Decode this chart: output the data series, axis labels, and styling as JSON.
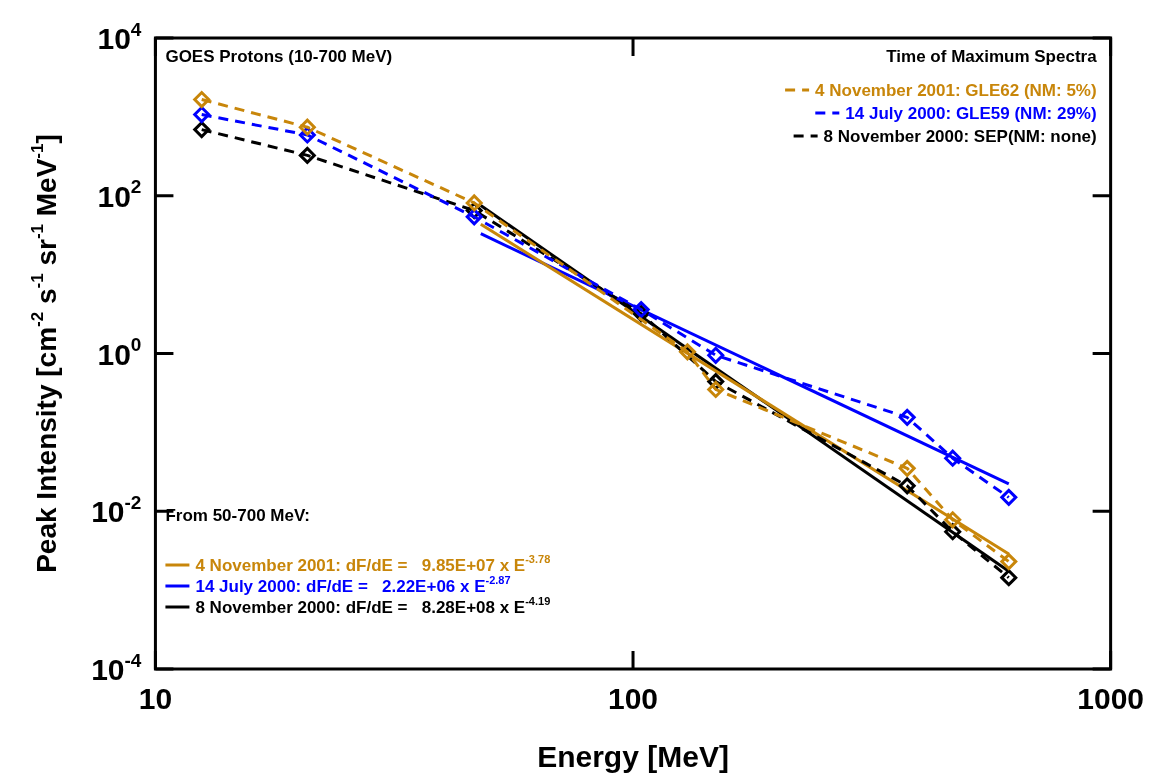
{
  "chart_data": {
    "type": "line",
    "xlabel": "Energy [MeV]",
    "ylabel": "Peak Intensity [cm$^{-2}$ s$^{-1}$ sr$^{-1}$ MeV$^{-1}$]",
    "legend_title": "Time of Maximum Spectra",
    "legend": "top right",
    "log": "xy",
    "grid": false,
    "xlim": [
      10,
      1000
    ],
    "xticks": [
      10,
      100,
      1000
    ],
    "ylim": [
      0.0001,
      10000
    ],
    "yticks": [
      {
        "value": 0.0001,
        "label": "10$^{-4}$"
      },
      {
        "value": 0.01,
        "label": "10$^{-2}$"
      },
      {
        "value": 1,
        "label": "10$^{0}$"
      },
      {
        "value": 100,
        "label": "10$^{2}$"
      },
      {
        "value": 10000,
        "label": "10$^{4}$"
      }
    ],
    "annotations": [
      "GOES Protons (10-700 MeV)",
      "From 50-700 MeV:"
    ],
    "series": [
      {
        "name": "4 November 2001: GLE62 (NM: 5%)",
        "color": "#c8860a",
        "marker": "diamond",
        "line_style": "dashed",
        "x": [
          12.5,
          20.8,
          46.5,
          130,
          149,
          375,
          467,
          612
        ],
        "values": [
          1660,
          740,
          81,
          1.05,
          0.35,
          0.035,
          0.0078,
          0.0023
        ]
      },
      {
        "name": "14 July 2000: GLE59 (NM: 29%)",
        "color": "#0000ff",
        "marker": "diamond",
        "line_style": "dashed",
        "x": [
          12.5,
          20.8,
          46.5,
          104,
          149,
          375,
          467,
          612
        ],
        "values": [
          1070,
          590,
          54,
          3.6,
          0.95,
          0.155,
          0.047,
          0.015
        ]
      },
      {
        "name": "8 November 2000: SEP(NM: none)",
        "color": "#000000",
        "marker": "diamond",
        "line_style": "dashed",
        "x": [
          12.5,
          20.8,
          46.5,
          104,
          149,
          375,
          467,
          612
        ],
        "values": [
          690,
          325,
          65,
          3.2,
          0.44,
          0.021,
          0.0055,
          0.00144
        ]
      },
      {
        "name": "4 November 2001: dF/dE =   9.85E+07 x E$^{-3.78}$",
        "color": "#c8860a",
        "marker": "none",
        "line_style": "solid",
        "x": [
          48,
          612
        ],
        "values": [
          43.5,
          0.00287
        ]
      },
      {
        "name": "14 July 2000: dF/dE =   2.22E+06 x E$^{-2.87}$",
        "color": "#0000ff",
        "marker": "none",
        "line_style": "solid",
        "x": [
          48,
          612
        ],
        "values": [
          33,
          0.0222
        ]
      },
      {
        "name": "8 November 2000: dF/dE =   8.28E+08 x E$^{-4.19}$",
        "color": "#000000",
        "marker": "none",
        "line_style": "solid",
        "x": [
          48,
          612
        ],
        "values": [
          75,
          0.00174
        ]
      }
    ]
  }
}
